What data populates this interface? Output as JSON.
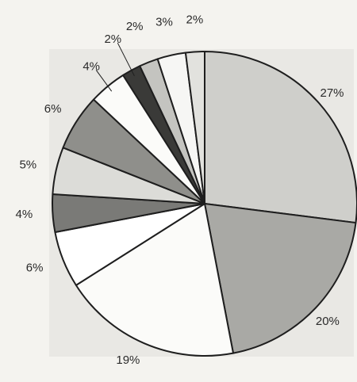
{
  "chart_data": {
    "type": "pie",
    "start": "12 o'clock",
    "direction": "clockwise",
    "slices": [
      {
        "value": 27,
        "label": "27%",
        "color": "#cfcfcb"
      },
      {
        "value": 20,
        "label": "20%",
        "color": "#a9a9a5"
      },
      {
        "value": 19,
        "label": "19%",
        "color": "#fbfbf9"
      },
      {
        "value": 6,
        "label": "6%",
        "color": "#ffffff"
      },
      {
        "value": 4,
        "label": "4%",
        "color": "#7a7a77"
      },
      {
        "value": 5,
        "label": "5%",
        "color": "#dcdcd8"
      },
      {
        "value": 6,
        "label": "6%",
        "color": "#8f8f8b"
      },
      {
        "value": 4,
        "label": "4%",
        "color": "#fbfbf9"
      },
      {
        "value": 2,
        "label": "2%",
        "color": "#3a3a38"
      },
      {
        "value": 2,
        "label": "2%",
        "color": "#c4c4c0"
      },
      {
        "value": 3,
        "label": "3%",
        "color": "#f6f6f4"
      },
      {
        "value": 2,
        "label": "2%",
        "color": "#e2e2de"
      }
    ],
    "colors": {
      "background": "#f4f3ef",
      "plot_area": "#e9e8e4",
      "outline": "#1e1e1e",
      "text": "#2a2a2a"
    }
  }
}
